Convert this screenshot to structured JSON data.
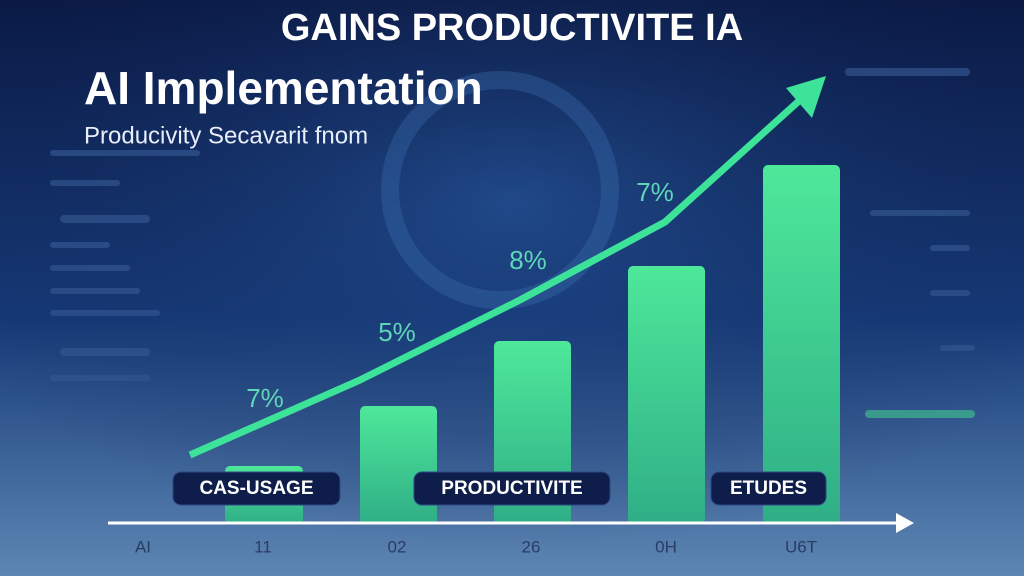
{
  "header": {
    "title": "GAINS PRODUCTIVITE IA",
    "heading": "AI Implementation",
    "subtitle": "Producivity Secavarit fnom"
  },
  "chart": {
    "percent_labels": [
      "7%",
      "5%",
      "8%",
      "7%"
    ],
    "tags": [
      "CAS-USAGE",
      "PRODUCTIVITE",
      "ETUDES"
    ],
    "x_labels": [
      "AI",
      "11",
      "02",
      "26",
      "0H",
      "U6T"
    ]
  }
}
